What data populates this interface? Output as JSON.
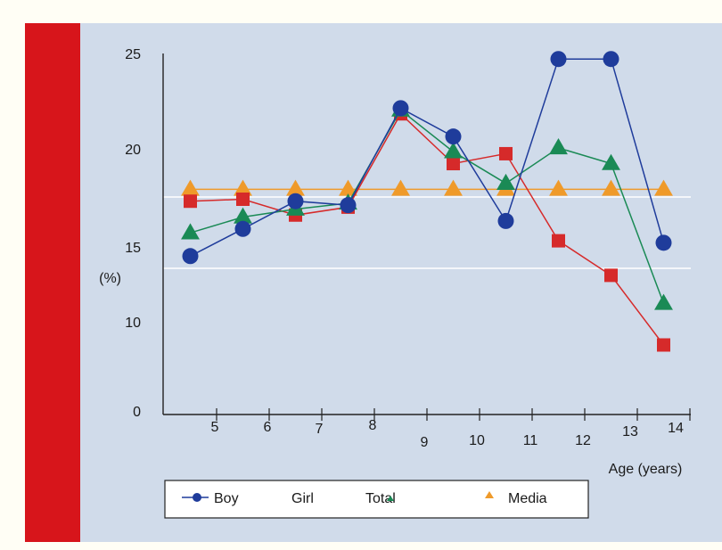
{
  "chart_data": {
    "type": "line",
    "title": "",
    "xlabel": "Age (years)",
    "ylabel": "(%)",
    "x_ticks": [
      "5",
      "6",
      "7",
      "8",
      "9",
      "10",
      "11",
      "12",
      "13",
      "14"
    ],
    "y_ticks": [
      "0",
      "10",
      "15",
      "20",
      "25"
    ],
    "x": [
      4.5,
      5.5,
      6.5,
      7.5,
      8.5,
      9.5,
      10.5,
      11.5,
      12.5,
      13.5
    ],
    "series": [
      {
        "name": "Boy",
        "color": "#1f3c9b",
        "marker": "circle",
        "values": [
          14.5,
          16.0,
          17.4,
          17.2,
          22.2,
          20.7,
          16.4,
          24.8,
          24.8,
          15.3
        ]
      },
      {
        "name": "Girl",
        "color": "#d62a2a",
        "marker": "square",
        "values": [
          17.4,
          17.5,
          16.7,
          17.1,
          21.9,
          19.3,
          19.8,
          15.4,
          13.2,
          7.5
        ]
      },
      {
        "name": "Total",
        "color": "#1a8a55",
        "marker": "triangle",
        "values": [
          15.8,
          16.6,
          17.0,
          17.3,
          22.1,
          19.9,
          18.3,
          20.1,
          19.3,
          11.3
        ]
      },
      {
        "name": "Media",
        "color": "#ef9a2a",
        "marker": "triangle",
        "values": [
          18.0,
          18.0,
          18.0,
          18.0,
          18.0,
          18.0,
          18.0,
          18.0,
          18.0,
          18.0
        ]
      }
    ],
    "grid": false,
    "legend_position": "bottom"
  }
}
